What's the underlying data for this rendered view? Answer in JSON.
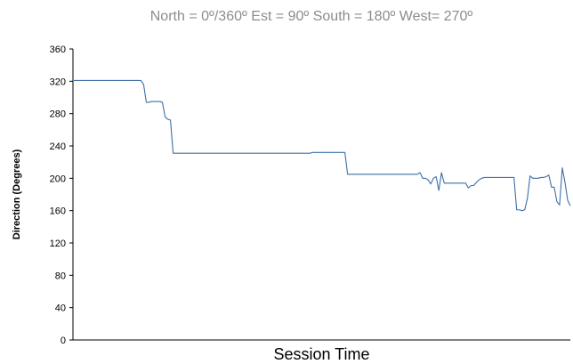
{
  "subtitle": "North = 0º/360º   Est = 90º   South = 180º   West= 270º",
  "colors": {
    "line": "#3d6fa6",
    "axis": "#000000",
    "subtitle": "#8c8c8c"
  },
  "chart_data": {
    "type": "line",
    "xlabel": "Session Time",
    "ylabel": "Direction (Degrees)",
    "ylim": [
      0,
      360
    ],
    "yticks": [
      0,
      40,
      80,
      120,
      160,
      200,
      240,
      280,
      320,
      360
    ],
    "grid": false,
    "legend": "none",
    "series": [
      {
        "values": [
          321,
          321,
          321,
          321,
          321,
          321,
          321,
          321,
          321,
          321,
          321,
          321,
          321,
          321,
          321,
          321,
          321,
          321,
          321,
          321,
          321,
          321,
          321,
          321,
          321,
          321,
          316,
          294,
          294,
          295,
          295,
          295,
          295,
          294,
          276,
          273,
          272,
          231,
          231,
          231,
          231,
          231,
          231,
          231,
          231,
          231,
          231,
          231,
          231,
          231,
          231,
          231,
          231,
          231,
          231,
          231,
          231,
          231,
          231,
          231,
          231,
          231,
          231,
          231,
          231,
          231,
          231,
          231,
          231,
          231,
          231,
          231,
          231,
          231,
          231,
          231,
          231,
          231,
          231,
          231,
          231,
          231,
          231,
          231,
          231,
          231,
          231,
          231,
          231,
          232,
          232,
          232,
          232,
          232,
          232,
          232,
          232,
          232,
          232,
          232,
          232,
          232,
          205,
          205,
          205,
          205,
          205,
          205,
          205,
          205,
          205,
          205,
          205,
          205,
          205,
          205,
          205,
          205,
          205,
          205,
          205,
          205,
          205,
          205,
          205,
          205,
          205,
          205,
          205,
          207,
          200,
          200,
          198,
          193,
          200,
          202,
          185,
          207,
          194,
          194,
          194,
          194,
          194,
          194,
          194,
          194,
          194,
          188,
          191,
          191,
          195,
          198,
          200,
          201,
          201,
          201,
          201,
          201,
          201,
          201,
          201,
          201,
          201,
          201,
          201,
          161,
          161,
          160,
          161,
          175,
          203,
          200,
          200,
          200,
          201,
          201,
          202,
          204,
          189,
          189,
          171,
          167,
          213,
          195,
          173,
          166
        ]
      }
    ]
  }
}
